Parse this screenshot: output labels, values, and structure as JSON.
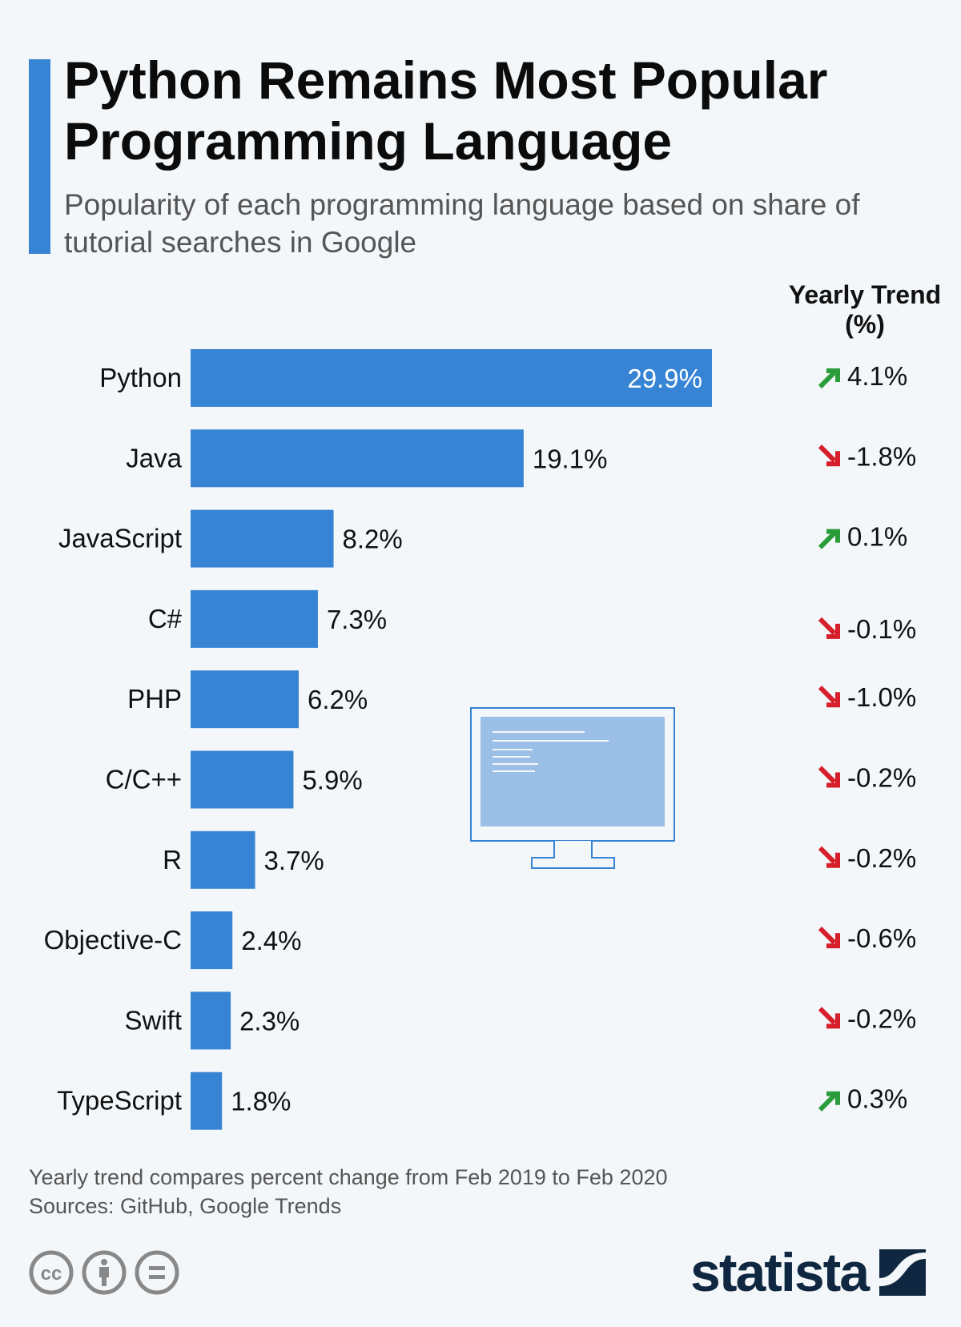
{
  "header": {
    "title": "Python Remains Most Popular Programming Language",
    "subtitle": "Popularity of each programming language based on share of tutorial searches in Google",
    "trend_header": "Yearly Trend (%)"
  },
  "colors": {
    "bar": "#3783d4",
    "up": "#2a9d3a",
    "down": "#d61f2b",
    "accent": "#3783d4",
    "logo": "#0f2741"
  },
  "chart_data": {
    "type": "bar",
    "orientation": "horizontal",
    "categories": [
      "Python",
      "Java",
      "JavaScript",
      "C#",
      "PHP",
      "C/C++",
      "R",
      "Objective-C",
      "Swift",
      "TypeScript"
    ],
    "values": [
      29.9,
      19.1,
      8.2,
      7.3,
      6.2,
      5.9,
      3.7,
      2.4,
      2.3,
      1.8
    ],
    "value_labels": [
      "29.9%",
      "19.1%",
      "8.2%",
      "7.3%",
      "6.2%",
      "5.9%",
      "3.7%",
      "2.4%",
      "2.3%",
      "1.8%"
    ],
    "unit": "%",
    "yearly_trend": [
      4.1,
      -1.8,
      0.1,
      -0.1,
      -1.0,
      -0.2,
      -0.2,
      -0.6,
      -0.2,
      0.3
    ],
    "yearly_trend_labels": [
      "4.1%",
      "-1.8%",
      "0.1%",
      "-0.1%",
      "-1.0%",
      "-0.2%",
      "-0.2%",
      "-0.6%",
      "-0.2%",
      "0.3%"
    ],
    "grid": false
  },
  "footer": {
    "note": "Yearly trend compares percent change from Feb 2019 to Feb 2020",
    "sources": "Sources: GitHub, Google Trends",
    "license_icons": [
      "cc-icon",
      "by-icon",
      "nd-icon"
    ],
    "logo": "statista"
  }
}
